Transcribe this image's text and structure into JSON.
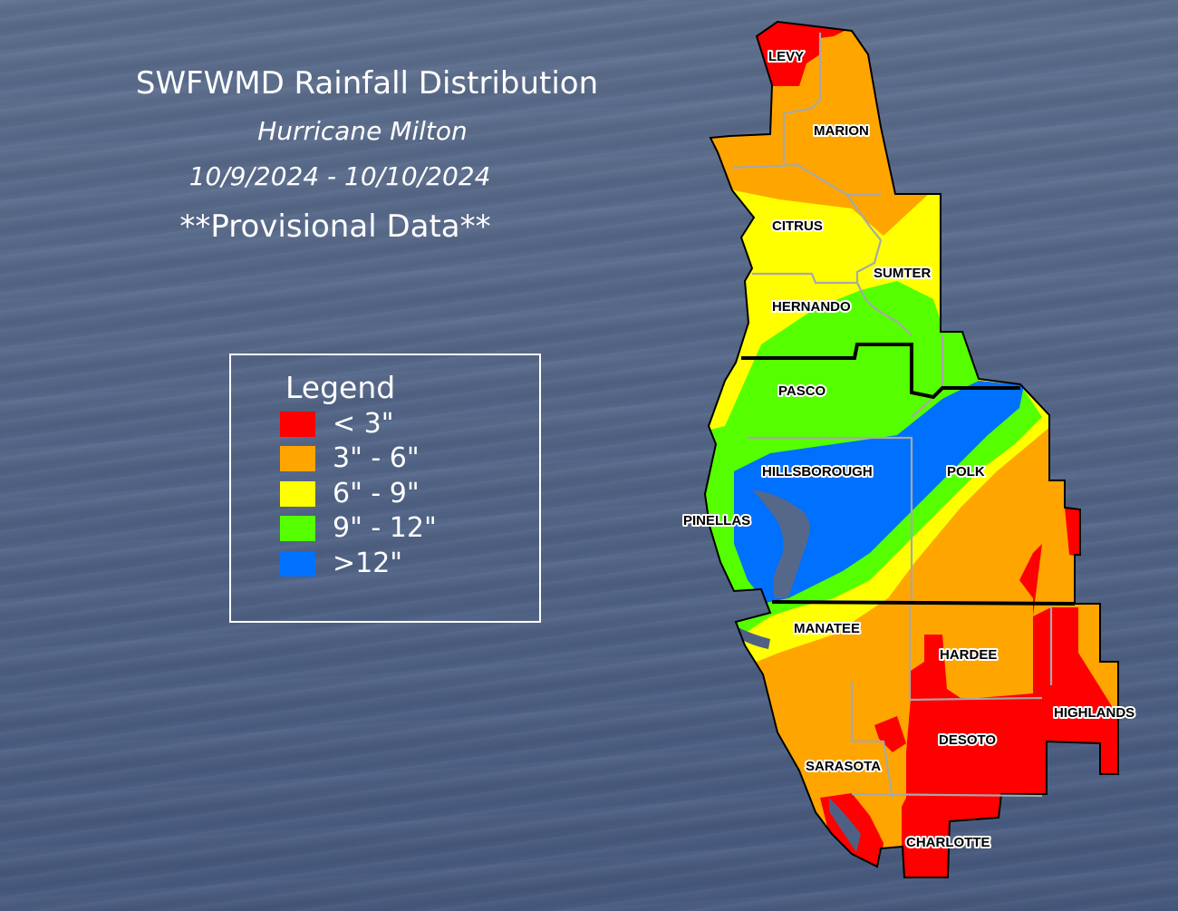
{
  "title": "SWFWMD Rainfall Distribution",
  "subtitle": "Hurricane Milton",
  "date_range": "10/9/2024 - 10/10/2024",
  "status_note": "**Provisional Data**",
  "legend": {
    "title": "Legend",
    "items": [
      {
        "label": "< 3\"",
        "color": "#ff0000"
      },
      {
        "label": "3\" - 6\"",
        "color": "#ffa500"
      },
      {
        "label": "6\" - 9\"",
        "color": "#ffff00"
      },
      {
        "label": "9\" - 12\"",
        "color": "#55ff00"
      },
      {
        "label": ">12\"",
        "color": "#0070ff"
      }
    ]
  },
  "counties": [
    "LEVY",
    "MARION",
    "CITRUS",
    "SUMTER",
    "HERNANDO",
    "PASCO",
    "HILLSBOROUGH",
    "POLK",
    "PINELLAS",
    "MANATEE",
    "HARDEE",
    "HIGHLANDS",
    "DESOTO",
    "SARASOTA",
    "CHARLOTTE"
  ]
}
